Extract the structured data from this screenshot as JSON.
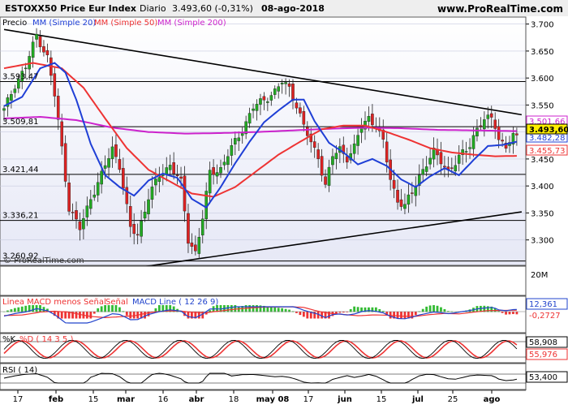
{
  "header": {
    "instrument": "ESTOXX50 Price Eur Index",
    "period": "Diario",
    "price": "3.493,60 (-0,31%)",
    "date": "08-ago-2018",
    "brand": "www.ProRealTime.com"
  },
  "main_legend": {
    "price_label": "Precio",
    "ma20_label": "MM (Simple 20)",
    "ma50_label": "MM (Simple 50)",
    "ma200_label": "MM (Simple 200)"
  },
  "watermark": "© ProRealTime.com",
  "colors": {
    "up": "#22aa22",
    "down": "#dd2222",
    "ma20": "#1f3fd6",
    "ma50": "#ee3333",
    "ma200": "#cc22cc",
    "panel_bg": "#e8eaf6",
    "grid": "#000000",
    "macd_hist_up": "#33bb33",
    "macd_hist_down": "#ee3333",
    "macd_line": "#2244cc",
    "macd_signal": "#ee3333",
    "stoch_k": "#000000",
    "stoch_d": "#ee3333",
    "rsi": "#000000",
    "price_tag": "#ffee00"
  },
  "price_axis_ticks": [
    "3.700",
    "3.650",
    "3.600",
    "3.550",
    "3.500",
    "3.450",
    "3.400",
    "3.350",
    "3.300"
  ],
  "volume_axis_tick": "20M",
  "level_labels": [
    "3.593,47",
    "3.509,81",
    "3.421,44",
    "3.336,21",
    "3.260,92"
  ],
  "indicator_tags": {
    "ma200": "3.501,66",
    "ma20": "3.482,28",
    "last_price": "3.493,60",
    "ma50": "3.455,73"
  },
  "macd_panel": {
    "label_a": "Linea MACD menos Señal",
    "label_b": "Señal",
    "label_c": "MACD Line ( 12 26 9)",
    "tag_top": "12,361",
    "tag_bottom": "-0,2727"
  },
  "stoch_panel": {
    "label_k": "%K",
    "label_d": "%D ( 14 3 5 )",
    "tag_k": "58,908",
    "tag_d": "55,976"
  },
  "rsi_panel": {
    "label": "RSI ( 14)",
    "tag": "53,400"
  },
  "x_axis_labels": [
    "17",
    "feb",
    "15",
    "mar",
    "16",
    "abr",
    "18",
    "may 08",
    "17",
    "jun",
    "15",
    "jul",
    "25",
    "ago"
  ],
  "chart_data": {
    "type": "candlestick",
    "title": "ESTOXX50 Price Eur Index",
    "ylim": [
      3250,
      3710
    ],
    "horizontal_levels": [
      3593.47,
      3509.81,
      3421.44,
      3336.21,
      3260.92
    ],
    "trendlines": [
      {
        "from": [
          0,
          3690
        ],
        "to": [
          142,
          3532
        ]
      },
      {
        "from": [
          28,
          3240
        ],
        "to": [
          142,
          3352
        ]
      }
    ],
    "anchors": [
      [
        0,
        3540
      ],
      [
        3,
        3588
      ],
      [
        6,
        3620
      ],
      [
        9,
        3680
      ],
      [
        12,
        3638
      ],
      [
        14,
        3568
      ],
      [
        16,
        3470
      ],
      [
        18,
        3360
      ],
      [
        21,
        3320
      ],
      [
        24,
        3378
      ],
      [
        27,
        3420
      ],
      [
        30,
        3470
      ],
      [
        32,
        3438
      ],
      [
        35,
        3320
      ],
      [
        37,
        3310
      ],
      [
        40,
        3380
      ],
      [
        43,
        3418
      ],
      [
        46,
        3440
      ],
      [
        49,
        3405
      ],
      [
        51,
        3300
      ],
      [
        53,
        3278
      ],
      [
        55,
        3340
      ],
      [
        57,
        3425
      ],
      [
        60,
        3432
      ],
      [
        63,
        3470
      ],
      [
        66,
        3505
      ],
      [
        69,
        3545
      ],
      [
        72,
        3560
      ],
      [
        75,
        3575
      ],
      [
        77,
        3592
      ],
      [
        79,
        3582
      ],
      [
        81,
        3550
      ],
      [
        83,
        3510
      ],
      [
        85,
        3480
      ],
      [
        87,
        3455
      ],
      [
        89,
        3400
      ],
      [
        91,
        3455
      ],
      [
        93,
        3470
      ],
      [
        95,
        3452
      ],
      [
        97,
        3470
      ],
      [
        99,
        3512
      ],
      [
        101,
        3528
      ],
      [
        103,
        3510
      ],
      [
        105,
        3480
      ],
      [
        107,
        3415
      ],
      [
        109,
        3372
      ],
      [
        111,
        3362
      ],
      [
        113,
        3388
      ],
      [
        115,
        3420
      ],
      [
        117,
        3440
      ],
      [
        119,
        3462
      ],
      [
        121,
        3448
      ],
      [
        123,
        3428
      ],
      [
        125,
        3440
      ],
      [
        127,
        3462
      ],
      [
        129,
        3478
      ],
      [
        131,
        3505
      ],
      [
        133,
        3520
      ],
      [
        135,
        3530
      ],
      [
        136,
        3515
      ],
      [
        137,
        3486
      ],
      [
        139,
        3470
      ],
      [
        141,
        3492
      ],
      [
        142,
        3493.6
      ]
    ],
    "ma20_anchors": [
      [
        0,
        3548
      ],
      [
        5,
        3565
      ],
      [
        10,
        3618
      ],
      [
        14,
        3628
      ],
      [
        17,
        3610
      ],
      [
        20,
        3560
      ],
      [
        24,
        3478
      ],
      [
        28,
        3420
      ],
      [
        32,
        3398
      ],
      [
        36,
        3382
      ],
      [
        40,
        3410
      ],
      [
        44,
        3423
      ],
      [
        48,
        3415
      ],
      [
        52,
        3376
      ],
      [
        56,
        3360
      ],
      [
        60,
        3398
      ],
      [
        64,
        3442
      ],
      [
        68,
        3482
      ],
      [
        72,
        3518
      ],
      [
        76,
        3540
      ],
      [
        80,
        3560
      ],
      [
        83,
        3560
      ],
      [
        86,
        3520
      ],
      [
        90,
        3480
      ],
      [
        94,
        3462
      ],
      [
        98,
        3440
      ],
      [
        102,
        3450
      ],
      [
        106,
        3437
      ],
      [
        110,
        3412
      ],
      [
        114,
        3398
      ],
      [
        118,
        3418
      ],
      [
        122,
        3433
      ],
      [
        126,
        3420
      ],
      [
        130,
        3448
      ],
      [
        134,
        3474
      ],
      [
        138,
        3476
      ],
      [
        142,
        3482
      ]
    ],
    "ma50_anchors": [
      [
        0,
        3618
      ],
      [
        8,
        3628
      ],
      [
        16,
        3618
      ],
      [
        22,
        3582
      ],
      [
        28,
        3525
      ],
      [
        34,
        3470
      ],
      [
        40,
        3430
      ],
      [
        46,
        3408
      ],
      [
        52,
        3386
      ],
      [
        58,
        3380
      ],
      [
        64,
        3398
      ],
      [
        70,
        3428
      ],
      [
        76,
        3458
      ],
      [
        82,
        3482
      ],
      [
        88,
        3505
      ],
      [
        94,
        3512
      ],
      [
        100,
        3512
      ],
      [
        106,
        3500
      ],
      [
        112,
        3486
      ],
      [
        118,
        3470
      ],
      [
        124,
        3462
      ],
      [
        130,
        3458
      ],
      [
        136,
        3455
      ],
      [
        142,
        3455.73
      ]
    ],
    "ma200_anchors": [
      [
        0,
        3525
      ],
      [
        10,
        3528
      ],
      [
        20,
        3522
      ],
      [
        30,
        3508
      ],
      [
        40,
        3500
      ],
      [
        50,
        3497
      ],
      [
        60,
        3498
      ],
      [
        70,
        3500
      ],
      [
        80,
        3503
      ],
      [
        90,
        3506
      ],
      [
        100,
        3508
      ],
      [
        110,
        3507
      ],
      [
        120,
        3504
      ],
      [
        130,
        3503
      ],
      [
        142,
        3501.66
      ]
    ],
    "panels": {
      "volume_tick": "20M",
      "macd_last": [
        12.361,
        -0.2727
      ],
      "stoch_last": [
        58.908,
        55.976
      ],
      "rsi_last": 53.4
    }
  }
}
